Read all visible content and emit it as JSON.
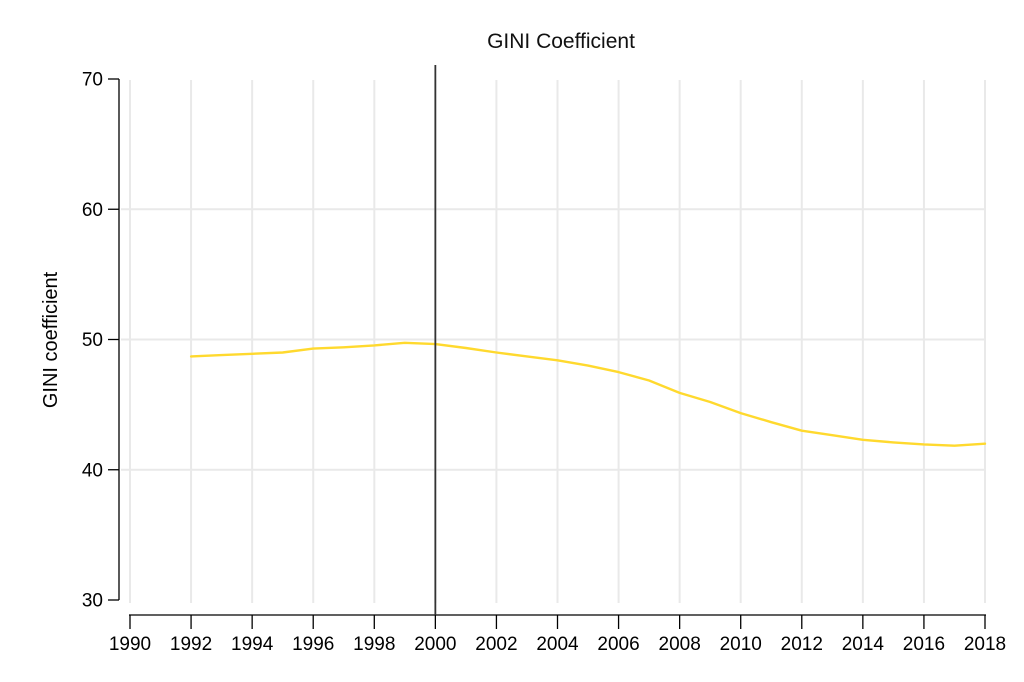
{
  "chart_data": {
    "type": "line",
    "title": "GINI Coefficient",
    "xlabel": "",
    "ylabel": "GINI coefficient",
    "xlim": [
      1990,
      2018
    ],
    "ylim": [
      30,
      70
    ],
    "xticks": [
      1990,
      1992,
      1994,
      1996,
      1998,
      2000,
      2002,
      2004,
      2006,
      2008,
      2010,
      2012,
      2014,
      2016,
      2018
    ],
    "yticks": [
      30,
      40,
      50,
      60,
      70
    ],
    "grid": true,
    "legend": "none",
    "reference_line": {
      "axis": "x",
      "value": 2000
    },
    "series": [
      {
        "name": "GINI coefficient",
        "x": [
          1992,
          1993,
          1994,
          1995,
          1996,
          1997,
          1998,
          1999,
          2000,
          2001,
          2002,
          2003,
          2004,
          2005,
          2006,
          2007,
          2008,
          2009,
          2010,
          2011,
          2012,
          2013,
          2014,
          2015,
          2016,
          2017,
          2018
        ],
        "values": [
          48.7,
          48.8,
          48.9,
          49.0,
          49.3,
          49.4,
          49.55,
          49.75,
          49.65,
          49.35,
          49.0,
          48.7,
          48.4,
          48.0,
          47.5,
          46.85,
          45.9,
          45.2,
          44.35,
          43.65,
          43.0,
          42.65,
          42.3,
          42.1,
          41.95,
          41.85,
          42.0
        ]
      }
    ],
    "colors": {
      "line": "#FFD92E",
      "reference_line": "#333333",
      "grid": "#E9E9E9",
      "axis": "#000000",
      "background": "#FFFFFF"
    }
  }
}
